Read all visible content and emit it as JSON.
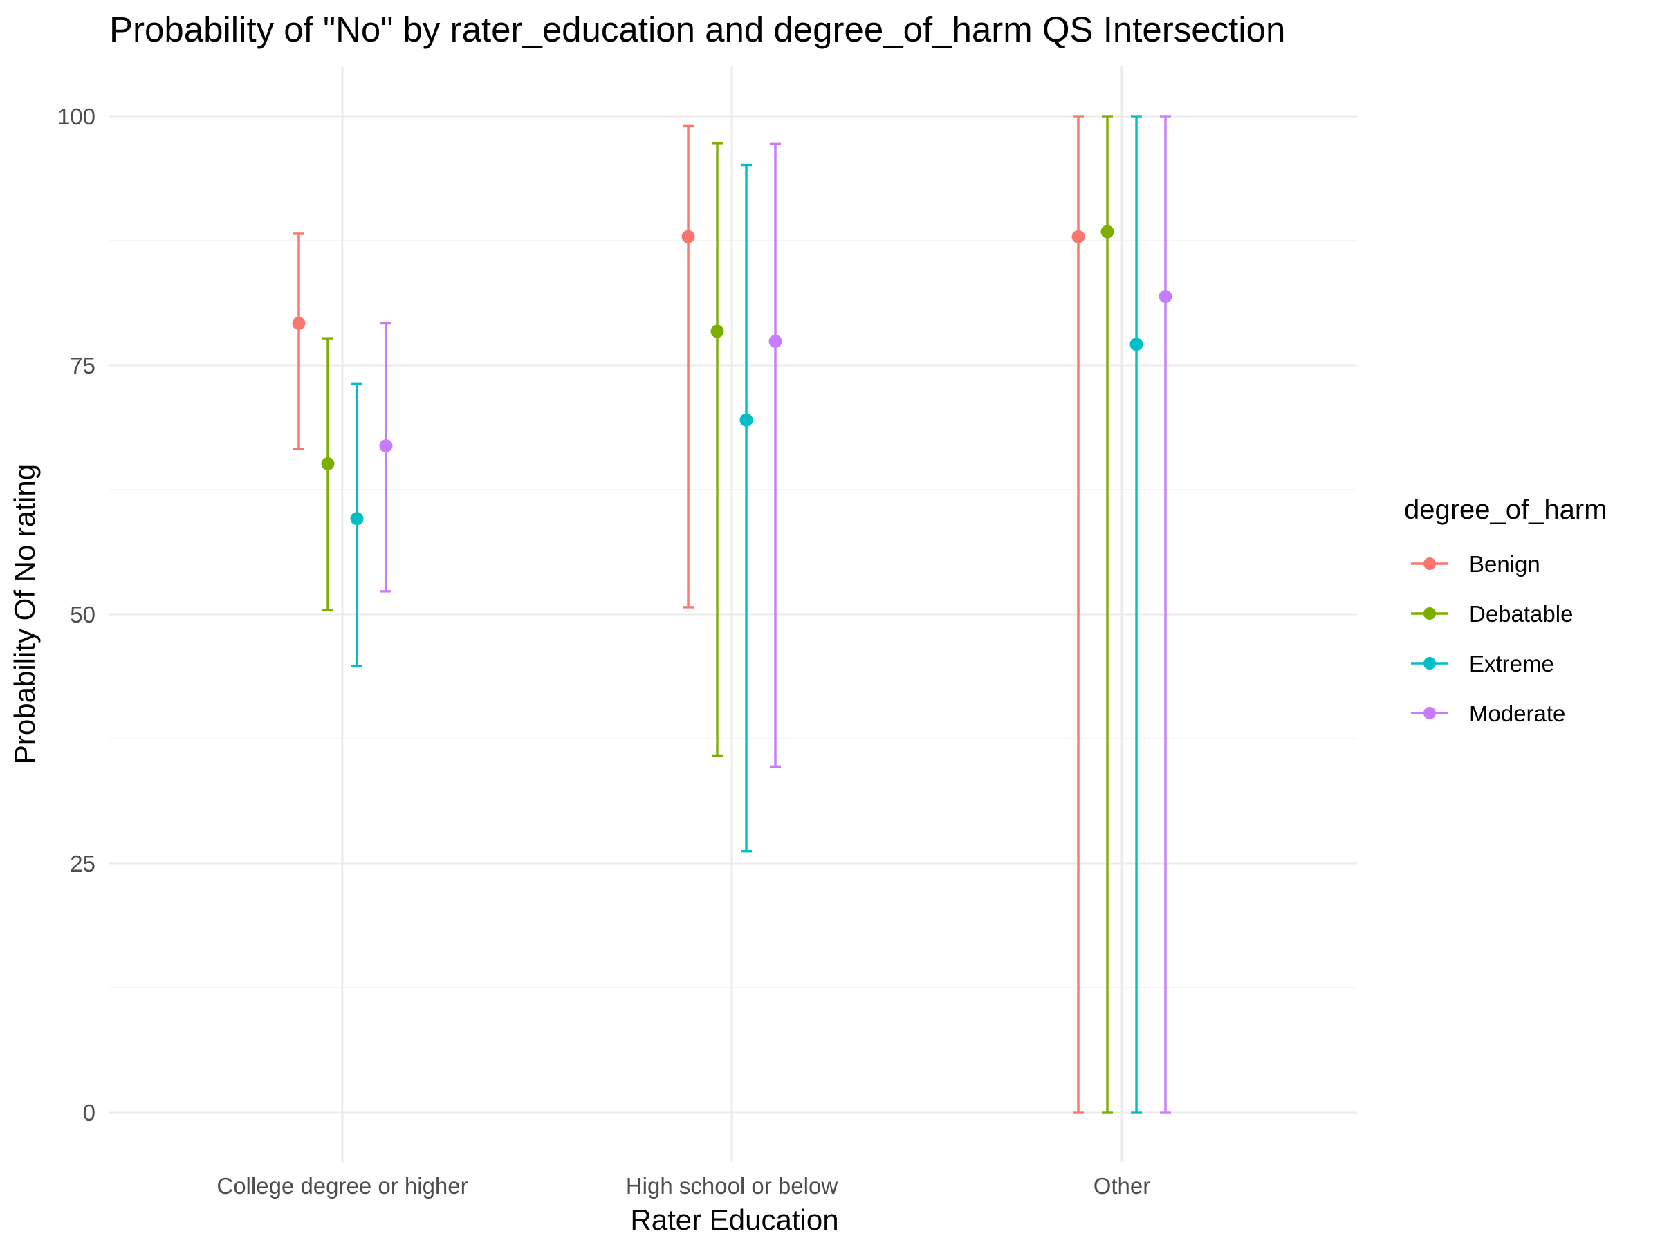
{
  "chart_data": {
    "type": "errorbar",
    "title": "Probability of \"No\" by rater_education and  degree_of_harm  QS Intersection",
    "xlabel": "Rater Education",
    "ylabel": "Probability Of No rating",
    "ylim": [
      0,
      100
    ],
    "yticks": [
      0,
      25,
      50,
      75,
      100
    ],
    "categories": [
      "College degree or higher",
      "High school or below",
      "Other"
    ],
    "legend": {
      "title": "degree_of_harm",
      "position": "right"
    },
    "grid": true,
    "series": [
      {
        "name": "Benign",
        "color": "#f8766d",
        "values": [
          79.2,
          87.9,
          87.9
        ],
        "lower": [
          66.6,
          50.7,
          0
        ],
        "upper": [
          88.2,
          99.0,
          100
        ]
      },
      {
        "name": "Debatable",
        "color": "#7cae00",
        "values": [
          65.1,
          78.4,
          88.4
        ],
        "lower": [
          50.4,
          35.8,
          0
        ],
        "upper": [
          77.7,
          97.3,
          100
        ]
      },
      {
        "name": "Extreme",
        "color": "#00bfc4",
        "values": [
          59.6,
          69.5,
          77.1
        ],
        "lower": [
          44.8,
          26.2,
          0
        ],
        "upper": [
          73.1,
          95.1,
          100
        ]
      },
      {
        "name": "Moderate",
        "color": "#c77cff",
        "values": [
          66.9,
          77.4,
          81.9
        ],
        "lower": [
          52.3,
          34.7,
          0
        ],
        "upper": [
          79.2,
          97.2,
          100
        ]
      }
    ]
  }
}
